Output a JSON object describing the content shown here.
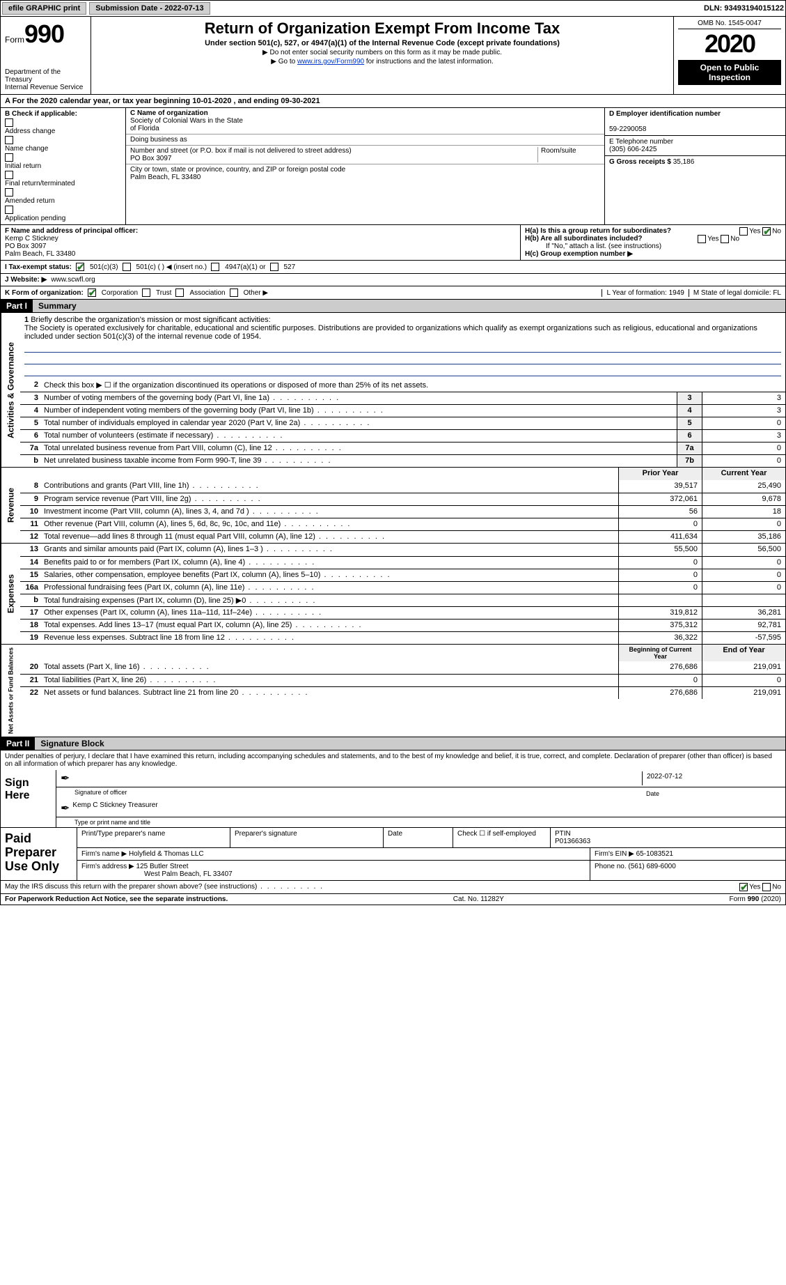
{
  "colors": {
    "black": "#000000",
    "white": "#ffffff",
    "grey_btn": "#d0d0d0",
    "grey_hdr": "#cccccc",
    "grey_box": "#eeeeee",
    "link": "#0033cc",
    "rule_blue": "#1a3a8a",
    "check_green": "#2a7a2a"
  },
  "topbar": {
    "efile": "efile GRAPHIC print",
    "subdate_label": "Submission Date - 2022-07-13",
    "dln": "DLN: 93493194015122"
  },
  "header": {
    "form_word": "Form",
    "form_num": "990",
    "dept": "Department of the Treasury\nInternal Revenue Service",
    "title": "Return of Organization Exempt From Income Tax",
    "sub": "Under section 501(c), 527, or 4947(a)(1) of the Internal Revenue Code (except private foundations)",
    "note1": "▶ Do not enter social security numbers on this form as it may be made public.",
    "note2_pre": "▶ Go to ",
    "note2_link": "www.irs.gov/Form990",
    "note2_post": " for instructions and the latest information.",
    "omb": "OMB No. 1545-0047",
    "year": "2020",
    "opti": "Open to Public Inspection"
  },
  "lineA": {
    "text_pre": "A For the 2020 calendar year, or tax year beginning ",
    "begin": "10-01-2020",
    "mid": " , and ending ",
    "end": "09-30-2021"
  },
  "B": {
    "title": "B Check if applicable:",
    "items": [
      "Address change",
      "Name change",
      "Initial return",
      "Final return/terminated",
      "Amended return",
      "Application pending"
    ]
  },
  "C": {
    "label": "C Name of organization",
    "name1": "Society of Colonial Wars in the State",
    "name2": "of Florida",
    "dba_label": "Doing business as",
    "street_label": "Number and street (or P.O. box if mail is not delivered to street address)",
    "room_label": "Room/suite",
    "street": "PO Box 3097",
    "city_label": "City or town, state or province, country, and ZIP or foreign postal code",
    "city": "Palm Beach, FL  33480"
  },
  "D": {
    "label": "D Employer identification number",
    "value": "59-2290058"
  },
  "E": {
    "label": "E Telephone number",
    "value": "(305) 606-2425"
  },
  "G": {
    "label": "G Gross receipts $",
    "value": "35,186"
  },
  "F": {
    "label": "F  Name and address of principal officer:",
    "name": "Kemp C Stickney",
    "addr1": "PO Box 3097",
    "addr2": "Palm Beach, FL  33480"
  },
  "H": {
    "a": "H(a)  Is this a group return for subordinates?",
    "b": "H(b)  Are all subordinates included?",
    "b_note": "If \"No,\" attach a list. (see instructions)",
    "c": "H(c)  Group exemption number ▶",
    "yes": "Yes",
    "no": "No"
  },
  "I": {
    "label": "I  Tax-exempt status:",
    "opts": [
      "501(c)(3)",
      "501(c) (   ) ◀ (insert no.)",
      "4947(a)(1) or",
      "527"
    ]
  },
  "J": {
    "label": "J  Website: ▶",
    "value": "www.scwfl.org"
  },
  "K": {
    "label": "K Form of organization:",
    "opts": [
      "Corporation",
      "Trust",
      "Association",
      "Other ▶"
    ],
    "L": "L Year of formation: 1949",
    "M": "M State of legal domicile: FL"
  },
  "part1": {
    "num": "Part I",
    "title": "Summary"
  },
  "mission": {
    "num": "1",
    "label": "Briefly describe the organization's mission or most significant activities:",
    "text": "The Society is operated exclusively for charitable, educational and scientific purposes. Distributions are provided to organizations which qualify as exempt organizations such as religious, educational and organizations included under section 501(c)(3) of the internal revenue code of 1954."
  },
  "gov_rows": [
    {
      "n": "2",
      "t": "Check this box ▶ ☐ if the organization discontinued its operations or disposed of more than 25% of its net assets."
    },
    {
      "n": "3",
      "t": "Number of voting members of the governing body (Part VI, line 1a)",
      "box": "3",
      "v": "3"
    },
    {
      "n": "4",
      "t": "Number of independent voting members of the governing body (Part VI, line 1b)",
      "box": "4",
      "v": "3"
    },
    {
      "n": "5",
      "t": "Total number of individuals employed in calendar year 2020 (Part V, line 2a)",
      "box": "5",
      "v": "0"
    },
    {
      "n": "6",
      "t": "Total number of volunteers (estimate if necessary)",
      "box": "6",
      "v": "3"
    },
    {
      "n": "7a",
      "t": "Total unrelated business revenue from Part VIII, column (C), line 12",
      "box": "7a",
      "v": "0"
    },
    {
      "n": "b",
      "t": "Net unrelated business taxable income from Form 990-T, line 39",
      "box": "7b",
      "v": "0"
    }
  ],
  "col_hdr": {
    "prior": "Prior Year",
    "current": "Current Year"
  },
  "rev_rows": [
    {
      "n": "8",
      "t": "Contributions and grants (Part VIII, line 1h)",
      "p": "39,517",
      "c": "25,490"
    },
    {
      "n": "9",
      "t": "Program service revenue (Part VIII, line 2g)",
      "p": "372,061",
      "c": "9,678"
    },
    {
      "n": "10",
      "t": "Investment income (Part VIII, column (A), lines 3, 4, and 7d )",
      "p": "56",
      "c": "18"
    },
    {
      "n": "11",
      "t": "Other revenue (Part VIII, column (A), lines 5, 6d, 8c, 9c, 10c, and 11e)",
      "p": "0",
      "c": "0"
    },
    {
      "n": "12",
      "t": "Total revenue—add lines 8 through 11 (must equal Part VIII, column (A), line 12)",
      "p": "411,634",
      "c": "35,186"
    }
  ],
  "exp_rows": [
    {
      "n": "13",
      "t": "Grants and similar amounts paid (Part IX, column (A), lines 1–3 )",
      "p": "55,500",
      "c": "56,500"
    },
    {
      "n": "14",
      "t": "Benefits paid to or for members (Part IX, column (A), line 4)",
      "p": "0",
      "c": "0"
    },
    {
      "n": "15",
      "t": "Salaries, other compensation, employee benefits (Part IX, column (A), lines 5–10)",
      "p": "0",
      "c": "0"
    },
    {
      "n": "16a",
      "t": "Professional fundraising fees (Part IX, column (A), line 11e)",
      "p": "0",
      "c": "0"
    },
    {
      "n": "b",
      "t": "Total fundraising expenses (Part IX, column (D), line 25) ▶0",
      "p": "",
      "c": ""
    },
    {
      "n": "17",
      "t": "Other expenses (Part IX, column (A), lines 11a–11d, 11f–24e)",
      "p": "319,812",
      "c": "36,281"
    },
    {
      "n": "18",
      "t": "Total expenses. Add lines 13–17 (must equal Part IX, column (A), line 25)",
      "p": "375,312",
      "c": "92,781"
    },
    {
      "n": "19",
      "t": "Revenue less expenses. Subtract line 18 from line 12",
      "p": "36,322",
      "c": "-57,595"
    }
  ],
  "net_hdr": {
    "begin": "Beginning of Current Year",
    "end": "End of Year"
  },
  "net_rows": [
    {
      "n": "20",
      "t": "Total assets (Part X, line 16)",
      "p": "276,686",
      "c": "219,091"
    },
    {
      "n": "21",
      "t": "Total liabilities (Part X, line 26)",
      "p": "0",
      "c": "0"
    },
    {
      "n": "22",
      "t": "Net assets or fund balances. Subtract line 21 from line 20",
      "p": "276,686",
      "c": "219,091"
    }
  ],
  "vtabs": {
    "gov": "Activities & Governance",
    "rev": "Revenue",
    "exp": "Expenses",
    "net": "Net Assets or Fund Balances"
  },
  "part2": {
    "num": "Part II",
    "title": "Signature Block"
  },
  "sig": {
    "decl": "Under penalties of perjury, I declare that I have examined this return, including accompanying schedules and statements, and to the best of my knowledge and belief, it is true, correct, and complete. Declaration of preparer (other than officer) is based on all information of which preparer has any knowledge.",
    "sign_here": "Sign Here",
    "sig_officer": "Signature of officer",
    "date_val": "2022-07-12",
    "date": "Date",
    "name": "Kemp C Stickney  Treasurer",
    "name_lbl": "Type or print name and title"
  },
  "prep": {
    "title": "Paid Preparer Use Only",
    "h1": "Print/Type preparer's name",
    "h2": "Preparer's signature",
    "h3": "Date",
    "h4_pre": "Check ☐ if self-employed",
    "h5": "PTIN",
    "ptin": "P01366363",
    "firm_lbl": "Firm's name   ▶",
    "firm": "Holyfield & Thomas LLC",
    "ein_lbl": "Firm's EIN ▶",
    "ein": "65-1083521",
    "addr_lbl": "Firm's address ▶",
    "addr1": "125 Butler Street",
    "addr2": "West Palm Beach, FL  33407",
    "phone_lbl": "Phone no.",
    "phone": "(561) 689-6000"
  },
  "discuss": {
    "q": "May the IRS discuss this return with the preparer shown above? (see instructions)",
    "yes": "Yes",
    "no": "No"
  },
  "footer": {
    "left": "For Paperwork Reduction Act Notice, see the separate instructions.",
    "center": "Cat. No. 11282Y",
    "right": "Form 990 (2020)"
  }
}
